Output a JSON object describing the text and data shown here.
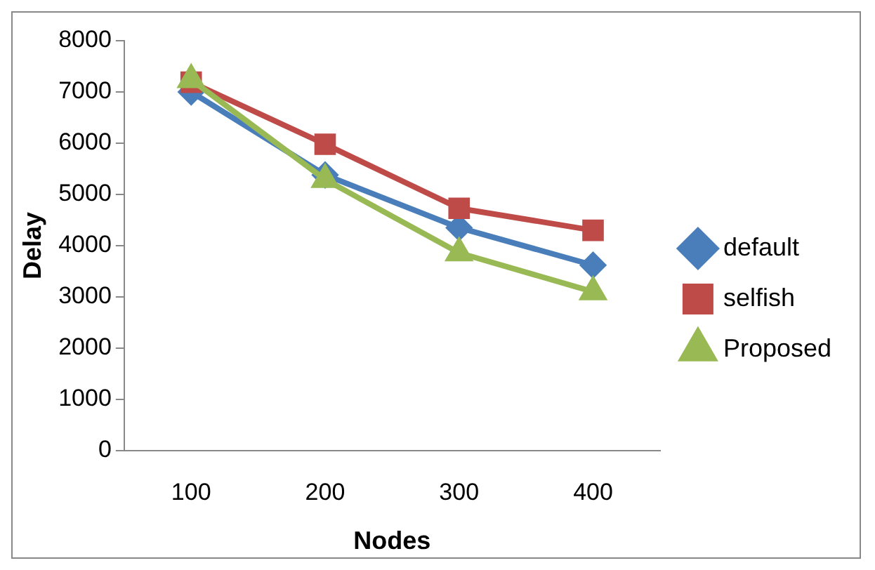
{
  "chart_data": {
    "type": "line",
    "xlabel": "Nodes",
    "ylabel": "Delay",
    "categories": [
      "100",
      "200",
      "300",
      "400"
    ],
    "series": [
      {
        "name": "default",
        "color": "#4a7ebb",
        "marker": "diamond",
        "values": [
          7000,
          5380,
          4350,
          3620
        ]
      },
      {
        "name": "selfish",
        "color": "#be4b48",
        "marker": "square",
        "values": [
          7190,
          5980,
          4730,
          4300
        ]
      },
      {
        "name": "Proposed",
        "color": "#98b954",
        "marker": "triangle",
        "values": [
          7240,
          5290,
          3860,
          3100
        ]
      }
    ],
    "ylim": [
      0,
      8000
    ],
    "yticks": [
      0,
      1000,
      2000,
      3000,
      4000,
      5000,
      6000,
      7000,
      8000
    ],
    "grid": false,
    "legend": "right",
    "line_style": "solid"
  }
}
